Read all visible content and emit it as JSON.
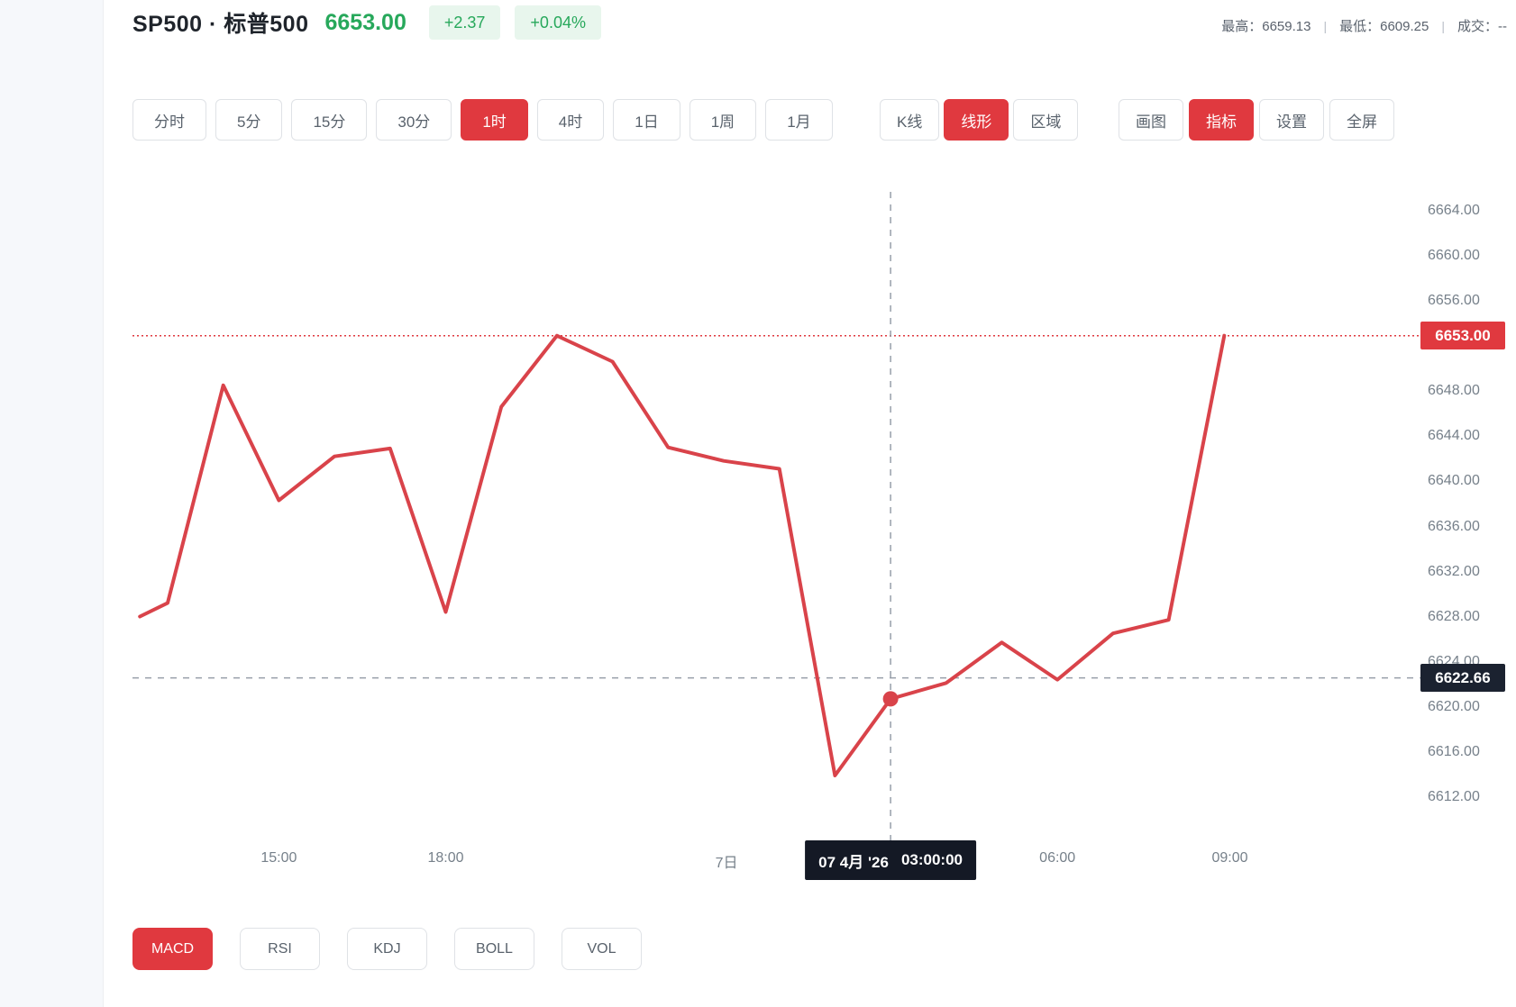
{
  "colors": {
    "accent_red": "#e0393f",
    "line_red": "#d9434a",
    "green": "#27a85b",
    "green_badge_bg": "#e8f6ed",
    "tooltip_bg": "#141925",
    "dark_badge_bg": "#1b2230",
    "axis_text": "#76808a",
    "crosshair": "#979fa9",
    "sidebar_bg": "#f6f8fb"
  },
  "header": {
    "symbol": "SP500 · 标普500",
    "price": "6653.00",
    "change": "+2.37",
    "change_pct": "+0.04%",
    "stats": [
      {
        "label": "最高：",
        "value": "6659.13"
      },
      {
        "label": "最低：",
        "value": "6609.25"
      },
      {
        "label": "成交：",
        "value": "--"
      }
    ]
  },
  "toolbar": {
    "periods": {
      "items": [
        "分时",
        "5分",
        "15分",
        "30分",
        "1时",
        "4时",
        "1日",
        "1周",
        "1月"
      ],
      "active": "1时"
    },
    "chart_types": {
      "items": [
        "K线",
        "线形",
        "区域"
      ],
      "active": "线形"
    },
    "tools": {
      "items": [
        "画图",
        "指标",
        "设置",
        "全屏"
      ],
      "active": "指标"
    },
    "indicators": {
      "items": [
        "MACD",
        "RSI",
        "KDJ",
        "BOLL",
        "VOL"
      ],
      "active": "MACD"
    }
  },
  "chart_data": {
    "type": "line",
    "title": "SP500 · 标普500 1时 线形",
    "ylim": [
      6610,
      6666
    ],
    "y_axis": {
      "ticks": [
        6664,
        6660,
        6656,
        6652,
        6648,
        6644,
        6640,
        6636,
        6632,
        6628,
        6624,
        6620,
        6616,
        6612
      ]
    },
    "x_axis": {
      "labels": [
        {
          "text": "15:00",
          "t": 2
        },
        {
          "text": "18:00",
          "t": 5
        },
        {
          "text": "7日",
          "t": 10.05
        },
        {
          "text": "06:00",
          "t": 16
        },
        {
          "text": "09:00",
          "t": 19.1
        }
      ]
    },
    "series": [
      {
        "name": "SP500",
        "points": [
          [
            -0.5,
            6628.1
          ],
          [
            0,
            6629.3
          ],
          [
            1,
            6648.6
          ],
          [
            2,
            6638.4
          ],
          [
            3,
            6642.3
          ],
          [
            4,
            6643.0
          ],
          [
            5,
            6628.5
          ],
          [
            6,
            6646.7
          ],
          [
            7,
            6653.0
          ],
          [
            8,
            6650.7
          ],
          [
            9,
            6643.1
          ],
          [
            10,
            6641.9
          ],
          [
            11,
            6641.2
          ],
          [
            12,
            6614.0
          ],
          [
            13,
            6620.8
          ],
          [
            14,
            6622.2
          ],
          [
            15,
            6625.8
          ],
          [
            16,
            6622.5
          ],
          [
            17,
            6626.6
          ],
          [
            18,
            6627.8
          ],
          [
            19,
            6653.0
          ]
        ]
      }
    ],
    "current_price": 6653.0,
    "current_price_label": "6653.00",
    "crosshair": {
      "t": 13,
      "date": "07 4月 '26",
      "time": "03:00:00",
      "price": 6622.66,
      "price_label": "6622.66",
      "point_value": 6620.8
    }
  }
}
